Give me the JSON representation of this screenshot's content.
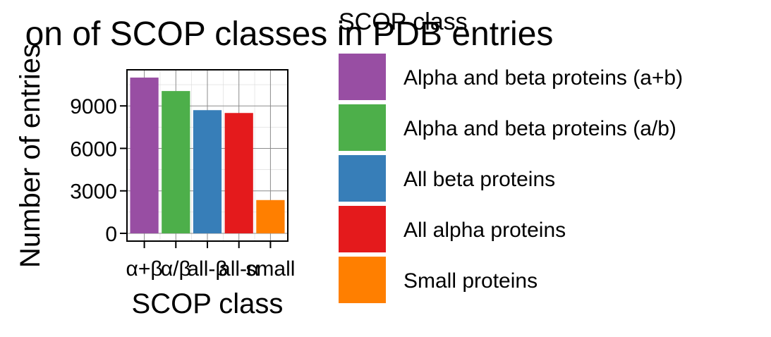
{
  "chart_data": {
    "type": "bar",
    "title": "on of SCOP classes in PDB entries",
    "xlabel": "SCOP class",
    "ylabel": "Number of entries",
    "categories": [
      "α+β",
      "α/β",
      "all-β",
      "all-α",
      "small"
    ],
    "values": [
      11000,
      10050,
      8700,
      8500,
      2350
    ],
    "colors": [
      "#984EA3",
      "#4DAF4A",
      "#377EB8",
      "#E41A1C",
      "#FF7F00"
    ],
    "ylim": [
      -550,
      11550
    ],
    "yticks": [
      0,
      3000,
      6000,
      9000
    ],
    "ytick_labels": [
      "0",
      "3000",
      "6000",
      "9000"
    ],
    "grid": true,
    "legend": {
      "title": "SCOP class",
      "placement": "right",
      "entries": [
        {
          "label": "Alpha and beta proteins (a+b)",
          "color": "#984EA3"
        },
        {
          "label": "Alpha and beta proteins (a/b)",
          "color": "#4DAF4A"
        },
        {
          "label": "All beta proteins",
          "color": "#377EB8"
        },
        {
          "label": "All alpha proteins",
          "color": "#E41A1C"
        },
        {
          "label": "Small proteins",
          "color": "#FF7F00"
        }
      ]
    }
  }
}
